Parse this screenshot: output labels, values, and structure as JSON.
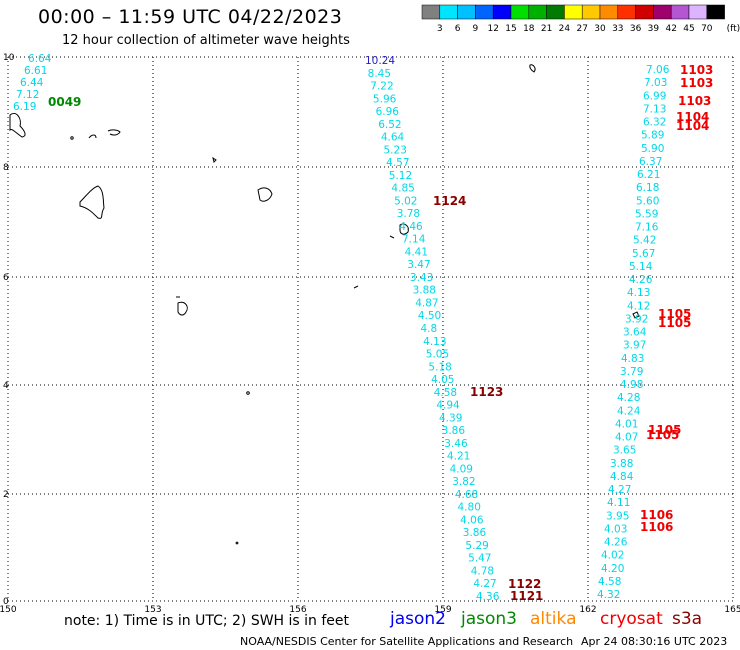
{
  "header": {
    "title": "00:00 – 11:59 UTC 04/22/2023",
    "subtitle": "12 hour collection of altimeter wave heights"
  },
  "colorbar": {
    "unit": "(ft)",
    "labels": [
      "3",
      "6",
      "9",
      "12",
      "15",
      "18",
      "21",
      "24",
      "27",
      "30",
      "33",
      "36",
      "39",
      "42",
      "45",
      "70"
    ],
    "colors": [
      "#808080",
      "#00e5ff",
      "#00c0ff",
      "#0064ff",
      "#0000ff",
      "#00e000",
      "#00b000",
      "#007a00",
      "#ffff00",
      "#ffc800",
      "#ff8c00",
      "#ff3000",
      "#d00000",
      "#a0006e",
      "#b455d2",
      "#dcb4ff",
      "#000000"
    ]
  },
  "map": {
    "x_ticks": [
      "150",
      "153",
      "156",
      "159",
      "162",
      "165"
    ],
    "y_ticks": [
      "10",
      "8",
      "6",
      "4",
      "2",
      "0"
    ]
  },
  "tracks": {
    "track1": {
      "values": [
        "10.24",
        "8.45",
        "7.22",
        "5.96",
        "6.96",
        "6.52",
        "4.64",
        "5.23",
        "4.57",
        "5.12",
        "4.85",
        "5.02",
        "3.78",
        "4.46",
        "7.14",
        "4.41",
        "3.47",
        "3.43",
        "3.88",
        "4.87",
        "4.50",
        "4.8",
        "4.13",
        "5.05",
        "5.18",
        "4.05",
        "4.58",
        "4.94",
        "4.39",
        "3.86",
        "3.46",
        "4.21",
        "4.09",
        "3.82",
        "4.68",
        "4.80",
        "4.06",
        "3.86",
        "5.29",
        "5.47",
        "4.78",
        "4.27",
        "4.36"
      ],
      "color": "#00d8e8",
      "first_color": "#2020c0"
    },
    "track2": {
      "values": [
        "7.06",
        "7.03",
        "6.99",
        "7.13",
        "6.32",
        "5.89",
        "5.90",
        "6.37",
        "6.21",
        "6.18",
        "5.60",
        "5.59",
        "7.16",
        "5.42",
        "5.67",
        "5.14",
        "4.26",
        "4.13",
        "4.12",
        "3.92",
        "3.64",
        "3.97",
        "4.83",
        "3.79",
        "4.98",
        "4.28",
        "4.24",
        "4.01",
        "4.07",
        "3.65",
        "3.88",
        "4.84",
        "4.27",
        "4.11",
        "3.95",
        "4.03",
        "4.26",
        "4.02",
        "4.20",
        "4.58",
        "4.32"
      ],
      "color": "#00d8e8"
    },
    "track3": {
      "values": [
        "6.64",
        "6.61",
        "6.44",
        "7.12",
        "6.19"
      ],
      "color": "#00d8e8"
    }
  },
  "time_labels": {
    "jason2_green": {
      "text": "0049",
      "color": "#008800"
    },
    "red": [
      {
        "text": "1103",
        "color": "#ee0000"
      },
      {
        "text": "1103",
        "color": "#ee0000"
      },
      {
        "text": "1103",
        "color": "#ee0000"
      },
      {
        "text": "1104",
        "color": "#ee0000"
      },
      {
        "text": "1104",
        "color": "#ee0000"
      },
      {
        "text": "1105",
        "color": "#ee0000"
      },
      {
        "text": "1105",
        "color": "#ee0000"
      },
      {
        "text": "1105",
        "color": "#ee0000"
      },
      {
        "text": "1105",
        "color": "#ee0000"
      },
      {
        "text": "1106",
        "color": "#ee0000"
      },
      {
        "text": "1106",
        "color": "#ee0000"
      }
    ],
    "dark": [
      {
        "text": "1124",
        "color": "#880000"
      },
      {
        "text": "1123",
        "color": "#880000"
      },
      {
        "text": "1122",
        "color": "#880000"
      },
      {
        "text": "1121",
        "color": "#880000"
      }
    ]
  },
  "footer": {
    "note": "note: 1) Time is in UTC; 2) SWH is in feet",
    "satellites": [
      {
        "name": "jason2",
        "color": "#0000ee"
      },
      {
        "name": "jason3",
        "color": "#008800"
      },
      {
        "name": "altika",
        "color": "#ff8800"
      },
      {
        "name": "cryosat",
        "color": "#ee0000"
      },
      {
        "name": "s3a",
        "color": "#880000"
      }
    ],
    "credit": "NOAA/NESDIS Center for Satellite Applications and Research",
    "timestamp": "Apr 24 08:30:16 UTC 2023"
  }
}
